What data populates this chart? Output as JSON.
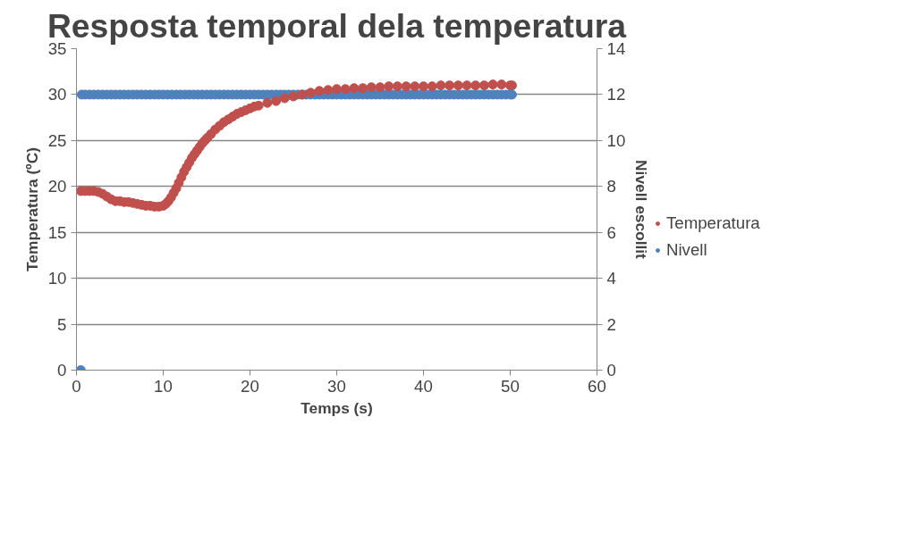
{
  "chart_data": {
    "type": "scatter",
    "title": "Resposta temporal dela temperatura",
    "xlabel": "Temps (s)",
    "ylabel": "Temperatura (ºC)",
    "y2label": "Nivell escollit",
    "xlim": [
      0,
      60
    ],
    "xticks": [
      0,
      10,
      20,
      30,
      40,
      50,
      60
    ],
    "ylim": [
      0,
      35
    ],
    "yticks": [
      0,
      5,
      10,
      15,
      20,
      25,
      30,
      35
    ],
    "y2lim": [
      0,
      14
    ],
    "y2ticks": [
      0,
      2,
      4,
      6,
      8,
      10,
      12,
      14
    ],
    "grid": "y",
    "legend": "right",
    "marker": "circle",
    "series": [
      {
        "name": "Temperatura",
        "color": "#c0504d",
        "x": [
          0.5,
          1,
          1.5,
          2,
          2.5,
          3,
          3.5,
          4,
          4.5,
          5,
          5.5,
          6,
          6.5,
          7,
          7.5,
          8,
          8.5,
          9,
          9.5,
          10,
          10.3,
          10.6,
          10.9,
          11.2,
          11.5,
          11.8,
          12.1,
          12.4,
          12.7,
          13,
          13.3,
          13.6,
          13.9,
          14.2,
          14.5,
          14.8,
          15.1,
          15.5,
          16,
          16.5,
          17,
          17.5,
          18,
          18.5,
          19,
          19.5,
          20,
          20.5,
          21,
          22,
          23,
          24,
          25,
          26,
          27,
          28,
          29,
          30,
          31,
          32,
          33,
          34,
          35,
          36,
          37,
          38,
          39,
          40,
          41,
          42,
          43,
          44,
          45,
          46,
          47,
          48,
          49,
          50,
          50.2
        ],
        "values": [
          19.5,
          19.5,
          19.5,
          19.5,
          19.4,
          19.2,
          18.9,
          18.6,
          18.4,
          18.4,
          18.3,
          18.3,
          18.2,
          18.1,
          18.0,
          17.9,
          17.9,
          17.8,
          17.8,
          17.9,
          18.1,
          18.4,
          18.8,
          19.3,
          19.8,
          20.4,
          21.0,
          21.6,
          22.1,
          22.6,
          23.1,
          23.5,
          23.9,
          24.3,
          24.7,
          25.0,
          25.3,
          25.7,
          26.2,
          26.6,
          27.0,
          27.3,
          27.6,
          27.9,
          28.1,
          28.3,
          28.5,
          28.7,
          28.8,
          29.1,
          29.3,
          29.6,
          29.8,
          30.0,
          30.2,
          30.4,
          30.5,
          30.6,
          30.6,
          30.7,
          30.7,
          30.8,
          30.8,
          30.9,
          30.9,
          30.9,
          30.9,
          30.9,
          30.9,
          31.0,
          31.0,
          31.0,
          31.0,
          31.0,
          31.0,
          31.1,
          31.1,
          31.0,
          31.0
        ]
      },
      {
        "name": "Nivell",
        "color": "#4f81bd",
        "axis": "y2",
        "x": [
          0.5,
          0.6,
          1,
          1.5,
          2,
          2.5,
          3,
          3.5,
          4,
          4.5,
          5,
          5.5,
          6,
          6.5,
          7,
          7.5,
          8,
          8.5,
          9,
          9.5,
          10,
          10.5,
          11,
          11.5,
          12,
          12.5,
          13,
          13.5,
          14,
          14.5,
          15,
          15.5,
          16,
          16.5,
          17,
          17.5,
          18,
          18.5,
          19,
          19.5,
          20,
          20.5,
          21,
          21.5,
          22,
          22.5,
          23,
          23.5,
          24,
          24.5,
          25,
          25.5,
          26,
          26.5,
          27,
          27.5,
          28,
          28.5,
          29,
          29.5,
          30,
          30.5,
          31,
          31.5,
          32,
          32.5,
          33,
          33.5,
          34,
          34.5,
          35,
          35.5,
          36,
          36.5,
          37,
          37.5,
          38,
          38.5,
          39,
          39.5,
          40,
          40.5,
          41,
          41.5,
          42,
          42.5,
          43,
          43.5,
          44,
          44.5,
          45,
          45.5,
          46,
          46.5,
          47,
          47.5,
          48,
          48.5,
          49,
          49.5,
          50,
          50.2
        ],
        "values": [
          0,
          12,
          12,
          12,
          12,
          12,
          12,
          12,
          12,
          12,
          12,
          12,
          12,
          12,
          12,
          12,
          12,
          12,
          12,
          12,
          12,
          12,
          12,
          12,
          12,
          12,
          12,
          12,
          12,
          12,
          12,
          12,
          12,
          12,
          12,
          12,
          12,
          12,
          12,
          12,
          12,
          12,
          12,
          12,
          12,
          12,
          12,
          12,
          12,
          12,
          12,
          12,
          12,
          12,
          12,
          12,
          12,
          12,
          12,
          12,
          12,
          12,
          12,
          12,
          12,
          12,
          12,
          12,
          12,
          12,
          12,
          12,
          12,
          12,
          12,
          12,
          12,
          12,
          12,
          12,
          12,
          12,
          12,
          12,
          12,
          12,
          12,
          12,
          12,
          12,
          12,
          12,
          12,
          12,
          12,
          12,
          12,
          12,
          12,
          12,
          12,
          12
        ]
      }
    ]
  }
}
